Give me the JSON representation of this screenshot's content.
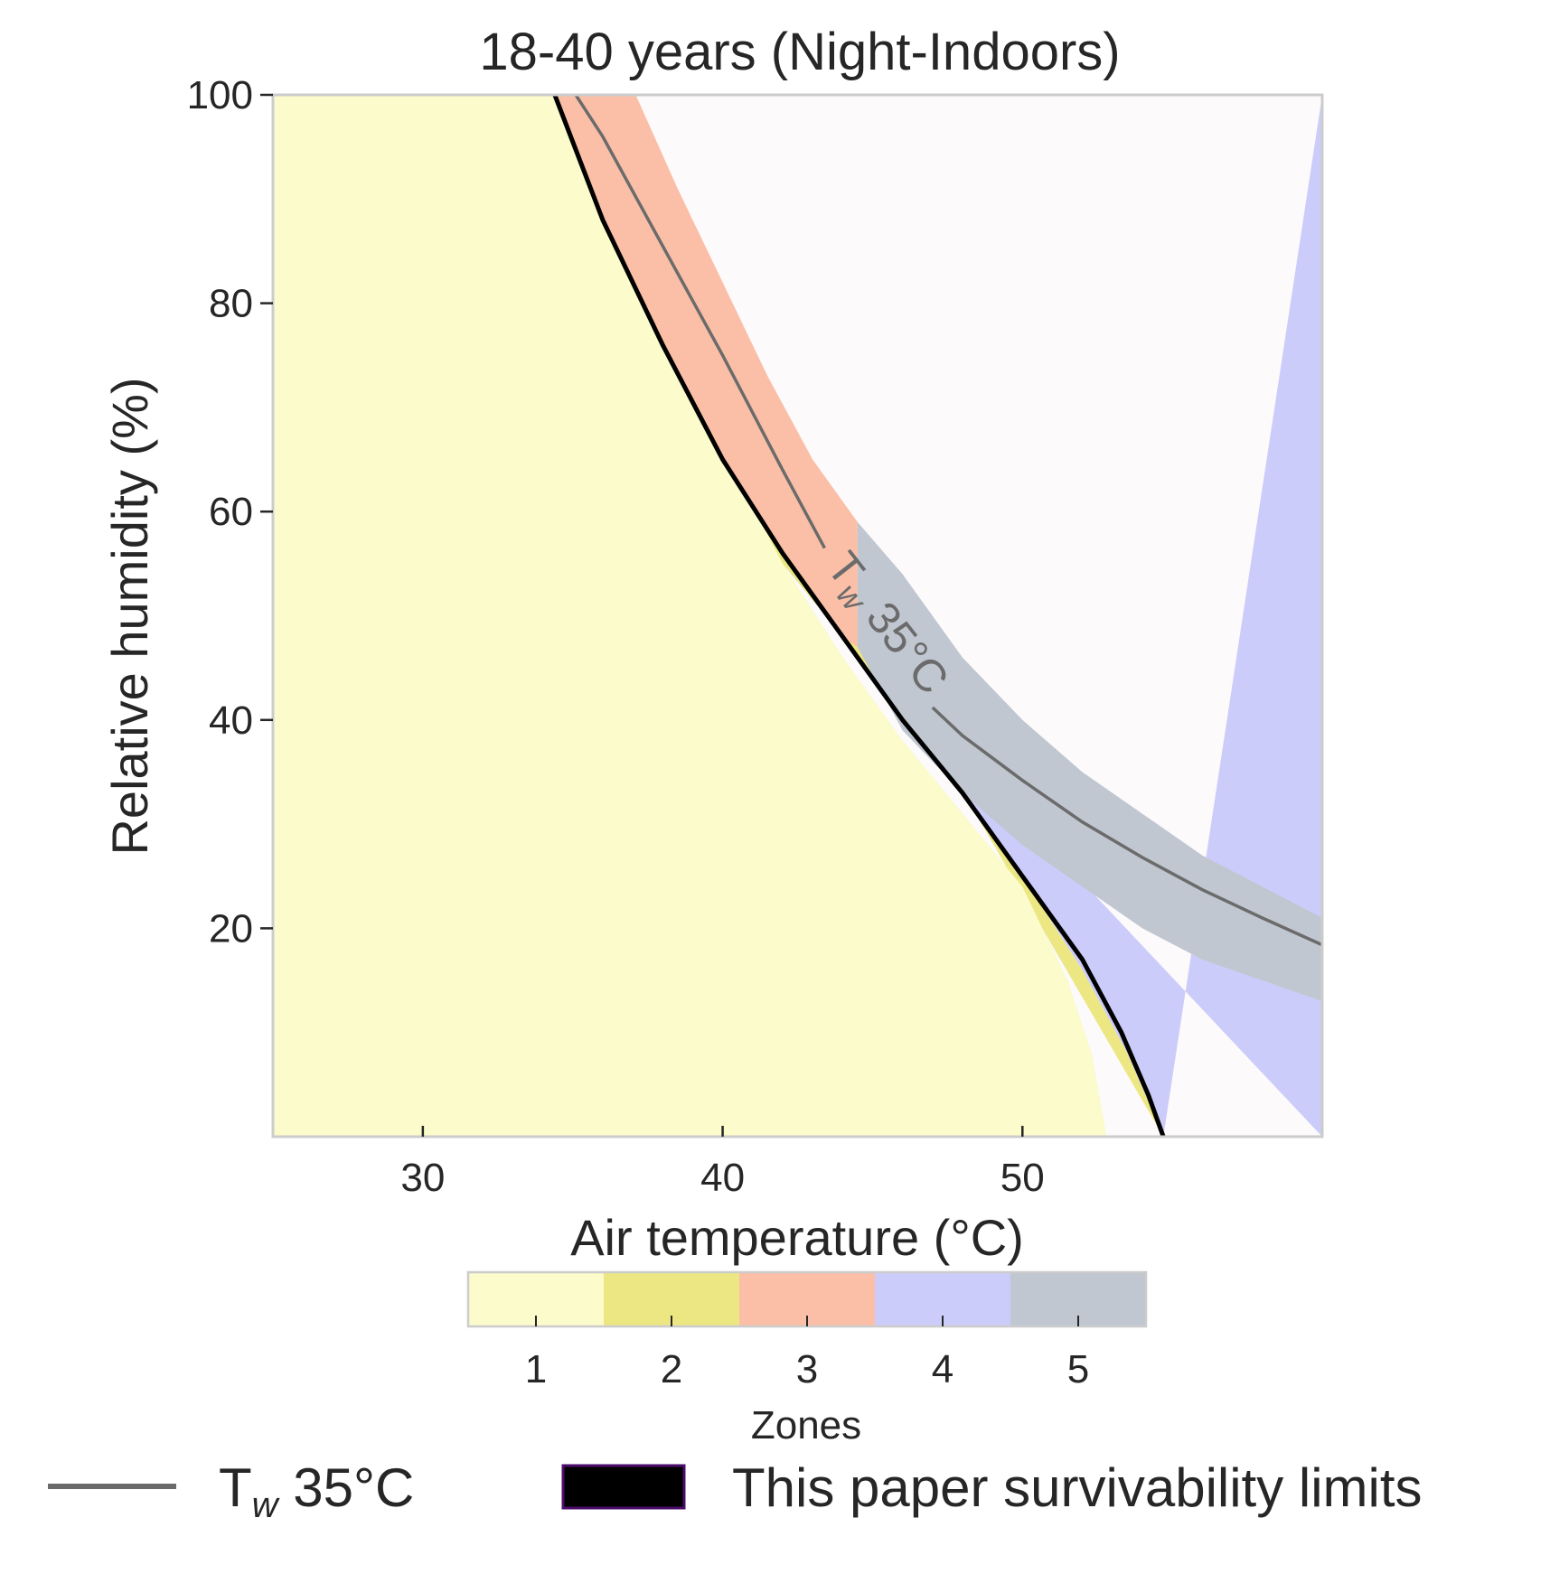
{
  "chart_data": {
    "type": "heatmap",
    "title": "18-40 years (Night-Indoors)",
    "xlabel": "Air temperature (°C)",
    "ylabel": "Relative humidity (%)",
    "xlim": [
      25,
      60
    ],
    "ylim": [
      0,
      100
    ],
    "x_ticks": [
      30,
      40,
      50
    ],
    "y_ticks": [
      20,
      40,
      60,
      80,
      100
    ],
    "grid": false,
    "colorbar": {
      "title": "Zones",
      "labels": [
        "1",
        "2",
        "3",
        "4",
        "5"
      ],
      "colors": [
        "#fbfbcb",
        "#ece783",
        "#fbbfa7",
        "#ccccfa",
        "#c0c7d0"
      ]
    },
    "background_color": "#fdfafc",
    "zones": [
      {
        "zone": "1",
        "boundary_ax": [
          [
            34.5,
            100
          ],
          [
            36,
            90
          ],
          [
            38,
            78
          ],
          [
            40,
            66
          ],
          [
            42,
            55
          ],
          [
            44,
            46
          ],
          [
            46,
            38
          ],
          [
            48,
            31
          ],
          [
            50,
            24
          ],
          [
            51.5,
            15
          ],
          [
            52.3,
            8
          ],
          [
            52.8,
            0
          ]
        ]
      },
      {
        "zone": "2",
        "boundary_ax": [
          [
            42,
            55
          ],
          [
            44,
            48
          ],
          [
            46,
            40
          ],
          [
            48,
            33
          ],
          [
            50,
            25
          ],
          [
            52,
            16
          ],
          [
            53.5,
            8
          ],
          [
            54.7,
            0
          ]
        ]
      },
      {
        "zone": "3",
        "boundary_ax": [
          [
            37.1,
            100
          ],
          [
            38.5,
            91
          ],
          [
            40,
            82
          ],
          [
            41.5,
            73
          ],
          [
            43,
            65
          ],
          [
            44.5,
            59
          ]
        ]
      },
      {
        "zone": "5",
        "outer_boundary": [
          [
            44.5,
            59
          ],
          [
            46,
            54
          ],
          [
            48,
            46
          ],
          [
            50,
            40
          ],
          [
            52,
            35
          ],
          [
            54,
            31
          ],
          [
            56,
            27
          ],
          [
            58,
            24
          ],
          [
            60,
            21
          ]
        ],
        "inner_boundary": [
          [
            44.5,
            47
          ],
          [
            46,
            39
          ],
          [
            48,
            33
          ],
          [
            50,
            28
          ],
          [
            52,
            24
          ],
          [
            54,
            20
          ],
          [
            56,
            17
          ],
          [
            58,
            15
          ],
          [
            60,
            13
          ]
        ]
      }
    ],
    "series": [
      {
        "name": "Tw 35°C",
        "color": "#6b6b6b",
        "points": [
          [
            35.1,
            100
          ],
          [
            36,
            96
          ],
          [
            38,
            85.5
          ],
          [
            40,
            75
          ],
          [
            42,
            64
          ],
          [
            43.4,
            56.5
          ],
          [
            47,
            41.2
          ],
          [
            48,
            38.5
          ],
          [
            50,
            34.2
          ],
          [
            52,
            30.2
          ],
          [
            54,
            26.8
          ],
          [
            56,
            23.7
          ],
          [
            58,
            21
          ],
          [
            60,
            18.4
          ]
        ]
      },
      {
        "name": "This paper survivability limits",
        "color": "#000000",
        "points": [
          [
            34.4,
            100
          ],
          [
            36,
            88
          ],
          [
            38,
            76
          ],
          [
            40,
            65
          ],
          [
            42,
            56
          ],
          [
            44,
            48
          ],
          [
            46,
            40
          ],
          [
            48,
            33
          ],
          [
            50,
            25
          ],
          [
            52,
            17
          ],
          [
            53.3,
            10
          ],
          [
            54.2,
            4
          ],
          [
            54.7,
            0
          ]
        ]
      }
    ],
    "annotation": {
      "text_main": "T",
      "text_sub": "w",
      "text_rest": " 35°C"
    },
    "legend": {
      "position": "bottom",
      "items": [
        {
          "label_main": "T",
          "label_sub": "w",
          "label_rest": " 35°C",
          "kind": "line",
          "color": "#6b6b6b"
        },
        {
          "label": "This paper survivability limits",
          "kind": "patch",
          "color": "#000000",
          "edge": "#4b0c6b"
        }
      ]
    }
  }
}
